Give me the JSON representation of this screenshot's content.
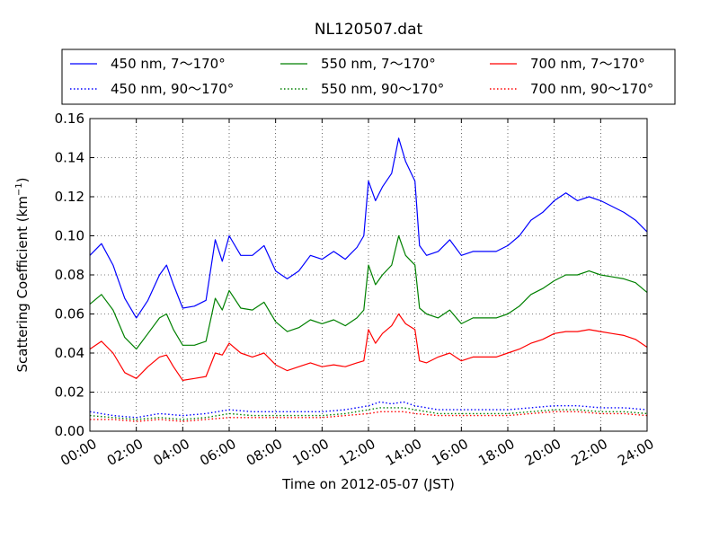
{
  "chart_data": {
    "type": "line",
    "title": "NL120507.dat",
    "xlabel": "Time on 2012-05-07 (JST)",
    "ylabel_main": "Scattering Coefficient (km",
    "ylabel_sup": "−1",
    "ylabel_tail": ")",
    "xlim": [
      0,
      24
    ],
    "ylim": [
      0,
      0.16
    ],
    "x_ticks": [
      {
        "value": 0,
        "label": "00:00"
      },
      {
        "value": 2,
        "label": "02:00"
      },
      {
        "value": 4,
        "label": "04:00"
      },
      {
        "value": 6,
        "label": "06:00"
      },
      {
        "value": 8,
        "label": "08:00"
      },
      {
        "value": 10,
        "label": "10:00"
      },
      {
        "value": 12,
        "label": "12:00"
      },
      {
        "value": 14,
        "label": "14:00"
      },
      {
        "value": 16,
        "label": "16:00"
      },
      {
        "value": 18,
        "label": "18:00"
      },
      {
        "value": 20,
        "label": "20:00"
      },
      {
        "value": 22,
        "label": "22:00"
      },
      {
        "value": 24,
        "label": "24:00"
      }
    ],
    "y_ticks": [
      {
        "value": 0.0,
        "label": "0.00"
      },
      {
        "value": 0.02,
        "label": "0.02"
      },
      {
        "value": 0.04,
        "label": "0.04"
      },
      {
        "value": 0.06,
        "label": "0.06"
      },
      {
        "value": 0.08,
        "label": "0.08"
      },
      {
        "value": 0.1,
        "label": "0.10"
      },
      {
        "value": 0.12,
        "label": "0.12"
      },
      {
        "value": 0.14,
        "label": "0.14"
      },
      {
        "value": 0.16,
        "label": "0.16"
      }
    ],
    "grid": true,
    "legend_position": "top",
    "series": [
      {
        "name": "450 nm, 7～170°",
        "color": "#0000ff",
        "style": "solid",
        "x": [
          0,
          0.5,
          1,
          1.5,
          2,
          2.5,
          3,
          3.3,
          3.6,
          4,
          4.5,
          5,
          5.4,
          5.7,
          6,
          6.5,
          7,
          7.5,
          8,
          8.5,
          9,
          9.5,
          10,
          10.5,
          11,
          11.5,
          11.8,
          12,
          12.3,
          12.6,
          13,
          13.3,
          13.6,
          14,
          14.2,
          14.5,
          15,
          15.5,
          16,
          16.5,
          17,
          17.5,
          18,
          18.5,
          19,
          19.5,
          20,
          20.5,
          21,
          21.5,
          22,
          22.5,
          23,
          23.5,
          24
        ],
        "y": [
          0.09,
          0.096,
          0.085,
          0.068,
          0.058,
          0.067,
          0.08,
          0.085,
          0.075,
          0.063,
          0.064,
          0.067,
          0.098,
          0.087,
          0.1,
          0.09,
          0.09,
          0.095,
          0.082,
          0.078,
          0.082,
          0.09,
          0.088,
          0.092,
          0.088,
          0.094,
          0.1,
          0.128,
          0.118,
          0.125,
          0.132,
          0.15,
          0.138,
          0.128,
          0.095,
          0.09,
          0.092,
          0.098,
          0.09,
          0.092,
          0.092,
          0.092,
          0.095,
          0.1,
          0.108,
          0.112,
          0.118,
          0.122,
          0.118,
          0.12,
          0.118,
          0.115,
          0.112,
          0.108,
          0.102
        ]
      },
      {
        "name": "550 nm, 7～170°",
        "color": "#008000",
        "style": "solid",
        "x": [
          0,
          0.5,
          1,
          1.5,
          2,
          2.5,
          3,
          3.3,
          3.6,
          4,
          4.5,
          5,
          5.4,
          5.7,
          6,
          6.5,
          7,
          7.5,
          8,
          8.5,
          9,
          9.5,
          10,
          10.5,
          11,
          11.5,
          11.8,
          12,
          12.3,
          12.6,
          13,
          13.3,
          13.6,
          14,
          14.2,
          14.5,
          15,
          15.5,
          16,
          16.5,
          17,
          17.5,
          18,
          18.5,
          19,
          19.5,
          20,
          20.5,
          21,
          21.5,
          22,
          22.5,
          23,
          23.5,
          24
        ],
        "y": [
          0.065,
          0.07,
          0.062,
          0.048,
          0.042,
          0.05,
          0.058,
          0.06,
          0.052,
          0.044,
          0.044,
          0.046,
          0.068,
          0.062,
          0.072,
          0.063,
          0.062,
          0.066,
          0.056,
          0.051,
          0.053,
          0.057,
          0.055,
          0.057,
          0.054,
          0.058,
          0.062,
          0.085,
          0.075,
          0.08,
          0.085,
          0.1,
          0.09,
          0.085,
          0.063,
          0.06,
          0.058,
          0.062,
          0.055,
          0.058,
          0.058,
          0.058,
          0.06,
          0.064,
          0.07,
          0.073,
          0.077,
          0.08,
          0.08,
          0.082,
          0.08,
          0.079,
          0.078,
          0.076,
          0.071
        ]
      },
      {
        "name": "700 nm, 7～170°",
        "color": "#ff0000",
        "style": "solid",
        "x": [
          0,
          0.5,
          1,
          1.5,
          2,
          2.5,
          3,
          3.3,
          3.6,
          4,
          4.5,
          5,
          5.4,
          5.7,
          6,
          6.5,
          7,
          7.5,
          8,
          8.5,
          9,
          9.5,
          10,
          10.5,
          11,
          11.5,
          11.8,
          12,
          12.3,
          12.6,
          13,
          13.3,
          13.6,
          14,
          14.2,
          14.5,
          15,
          15.5,
          16,
          16.5,
          17,
          17.5,
          18,
          18.5,
          19,
          19.5,
          20,
          20.5,
          21,
          21.5,
          22,
          22.5,
          23,
          23.5,
          24
        ],
        "y": [
          0.042,
          0.046,
          0.04,
          0.03,
          0.027,
          0.033,
          0.038,
          0.039,
          0.033,
          0.026,
          0.027,
          0.028,
          0.04,
          0.039,
          0.045,
          0.04,
          0.038,
          0.04,
          0.034,
          0.031,
          0.033,
          0.035,
          0.033,
          0.034,
          0.033,
          0.035,
          0.036,
          0.052,
          0.045,
          0.05,
          0.054,
          0.06,
          0.055,
          0.052,
          0.036,
          0.035,
          0.038,
          0.04,
          0.036,
          0.038,
          0.038,
          0.038,
          0.04,
          0.042,
          0.045,
          0.047,
          0.05,
          0.051,
          0.051,
          0.052,
          0.051,
          0.05,
          0.049,
          0.047,
          0.043
        ]
      },
      {
        "name": "450 nm, 90～170°",
        "color": "#0000ff",
        "style": "dotted",
        "x": [
          0,
          1,
          2,
          3,
          4,
          5,
          6,
          7,
          8,
          9,
          10,
          11,
          12,
          12.5,
          13,
          13.5,
          14,
          15,
          16,
          17,
          18,
          19,
          20,
          21,
          22,
          23,
          24
        ],
        "y": [
          0.01,
          0.008,
          0.007,
          0.009,
          0.008,
          0.009,
          0.011,
          0.01,
          0.01,
          0.01,
          0.01,
          0.011,
          0.013,
          0.015,
          0.014,
          0.015,
          0.013,
          0.011,
          0.011,
          0.011,
          0.011,
          0.012,
          0.013,
          0.013,
          0.012,
          0.012,
          0.011
        ]
      },
      {
        "name": "550 nm, 90～170°",
        "color": "#008000",
        "style": "dotted",
        "x": [
          0,
          1,
          2,
          3,
          4,
          5,
          6,
          7,
          8,
          9,
          10,
          11,
          12,
          12.5,
          13,
          13.5,
          14,
          15,
          16,
          17,
          18,
          19,
          20,
          21,
          22,
          23,
          24
        ],
        "y": [
          0.008,
          0.007,
          0.006,
          0.007,
          0.006,
          0.007,
          0.009,
          0.008,
          0.008,
          0.008,
          0.008,
          0.009,
          0.011,
          0.012,
          0.012,
          0.012,
          0.011,
          0.009,
          0.009,
          0.009,
          0.009,
          0.01,
          0.011,
          0.011,
          0.01,
          0.01,
          0.009
        ]
      },
      {
        "name": "700 nm, 90～170°",
        "color": "#ff0000",
        "style": "dotted",
        "x": [
          0,
          1,
          2,
          3,
          4,
          5,
          6,
          7,
          8,
          9,
          10,
          11,
          12,
          12.5,
          13,
          13.5,
          14,
          15,
          16,
          17,
          18,
          19,
          20,
          21,
          22,
          23,
          24
        ],
        "y": [
          0.006,
          0.006,
          0.005,
          0.006,
          0.005,
          0.006,
          0.007,
          0.007,
          0.007,
          0.007,
          0.007,
          0.008,
          0.009,
          0.01,
          0.01,
          0.01,
          0.009,
          0.008,
          0.008,
          0.008,
          0.008,
          0.009,
          0.01,
          0.01,
          0.009,
          0.009,
          0.008
        ]
      }
    ]
  }
}
